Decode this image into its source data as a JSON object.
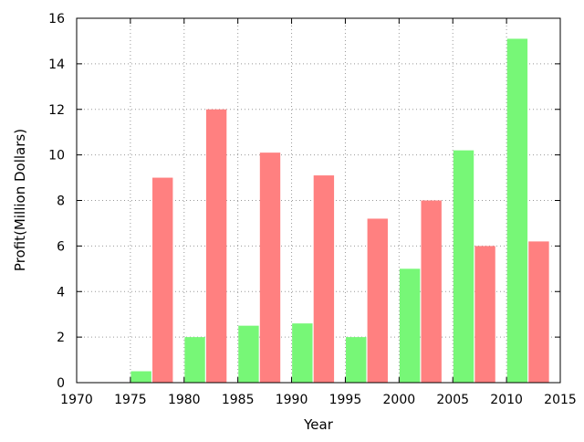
{
  "chart_data": {
    "type": "bar",
    "title": "",
    "xlabel": "Year",
    "ylabel": "Profit(Million Dollars)",
    "xlim": [
      1970,
      2015
    ],
    "ylim": [
      0,
      16
    ],
    "x_ticks": [
      "1970",
      "1975",
      "1980",
      "1985",
      "1990",
      "1995",
      "2000",
      "2005",
      "2010",
      "2015"
    ],
    "y_ticks": [
      "0",
      "2",
      "4",
      "6",
      "8",
      "10",
      "12",
      "14",
      "16"
    ],
    "x": [
      1976,
      1981,
      1986,
      1991,
      1996,
      2001,
      2006,
      2011
    ],
    "series": [
      {
        "color": "#77f777",
        "x": [
          1976,
          1981,
          1986,
          1991,
          1996,
          2001,
          2006,
          2011
        ],
        "values": [
          0.5,
          2.0,
          2.5,
          2.6,
          2.0,
          5.0,
          10.2,
          15.1
        ]
      },
      {
        "color": "#ff8080",
        "x": [
          1978,
          1983,
          1988,
          1993,
          1998,
          2003,
          2008,
          2013
        ],
        "values": [
          9.0,
          12.0,
          10.1,
          9.1,
          7.2,
          8.0,
          6.0,
          6.2
        ]
      }
    ],
    "grid": true,
    "legend": "none"
  }
}
